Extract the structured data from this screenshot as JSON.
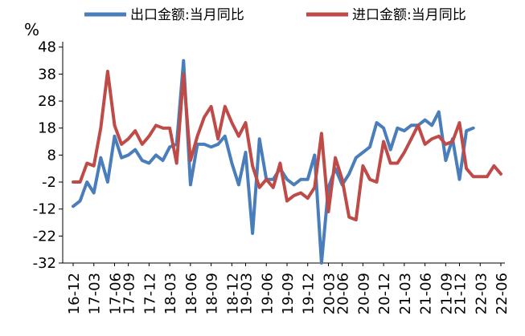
{
  "chart_data": {
    "type": "line",
    "unit": "%",
    "yticks": [
      48,
      38,
      28,
      18,
      8,
      -2,
      -12,
      -22,
      -32
    ],
    "ylim": [
      -32,
      50
    ],
    "xtick_labels": [
      "16-12",
      "17-03",
      "17-06",
      "17-09",
      "17-12",
      "18-03",
      "18-06",
      "18-09",
      "18-12",
      "19-03",
      "19-06",
      "19-09",
      "19-12",
      "20-03",
      "20-06",
      "20-09",
      "20-12",
      "21-03",
      "21-06",
      "21-09",
      "21-12",
      "22-03",
      "22-06"
    ],
    "legend_position": "top",
    "series": [
      {
        "name": "出口金额:当月同比",
        "color": "#4a7ebb",
        "values": [
          -11,
          -9,
          -2,
          -6,
          7,
          -2,
          15,
          7,
          8,
          10,
          6,
          5,
          8,
          6,
          11,
          12,
          43,
          -3,
          12,
          12,
          11,
          12,
          15,
          5,
          -3,
          9,
          -21,
          14,
          -1,
          -1,
          3,
          -1,
          -3,
          -1,
          -1,
          8,
          -32,
          -4,
          3,
          -3,
          1,
          7,
          9,
          11,
          20,
          18,
          10,
          18,
          17,
          19,
          19,
          21,
          19,
          24,
          6,
          14,
          -1,
          17,
          18
        ],
        "max_label": "43",
        "min_label": "-32"
      },
      {
        "name": "进口金额:当月同比",
        "color": "#be4b48",
        "values": [
          -2,
          -2,
          5,
          4,
          18,
          39,
          19,
          12,
          14,
          17,
          12,
          15,
          19,
          18,
          18,
          5,
          38,
          6,
          15,
          22,
          26,
          14,
          26,
          20,
          15,
          20,
          4,
          -4,
          -1,
          -4,
          5,
          -9,
          -7,
          -6,
          -8,
          -4,
          16,
          -13,
          7,
          -1,
          -15,
          -16,
          4,
          -1,
          -2,
          13,
          5,
          5,
          9,
          14,
          19,
          12,
          14,
          15,
          12,
          13,
          20,
          3,
          0,
          0,
          0,
          4,
          1
        ],
        "max_label": "39",
        "min_label": "-16"
      }
    ]
  }
}
